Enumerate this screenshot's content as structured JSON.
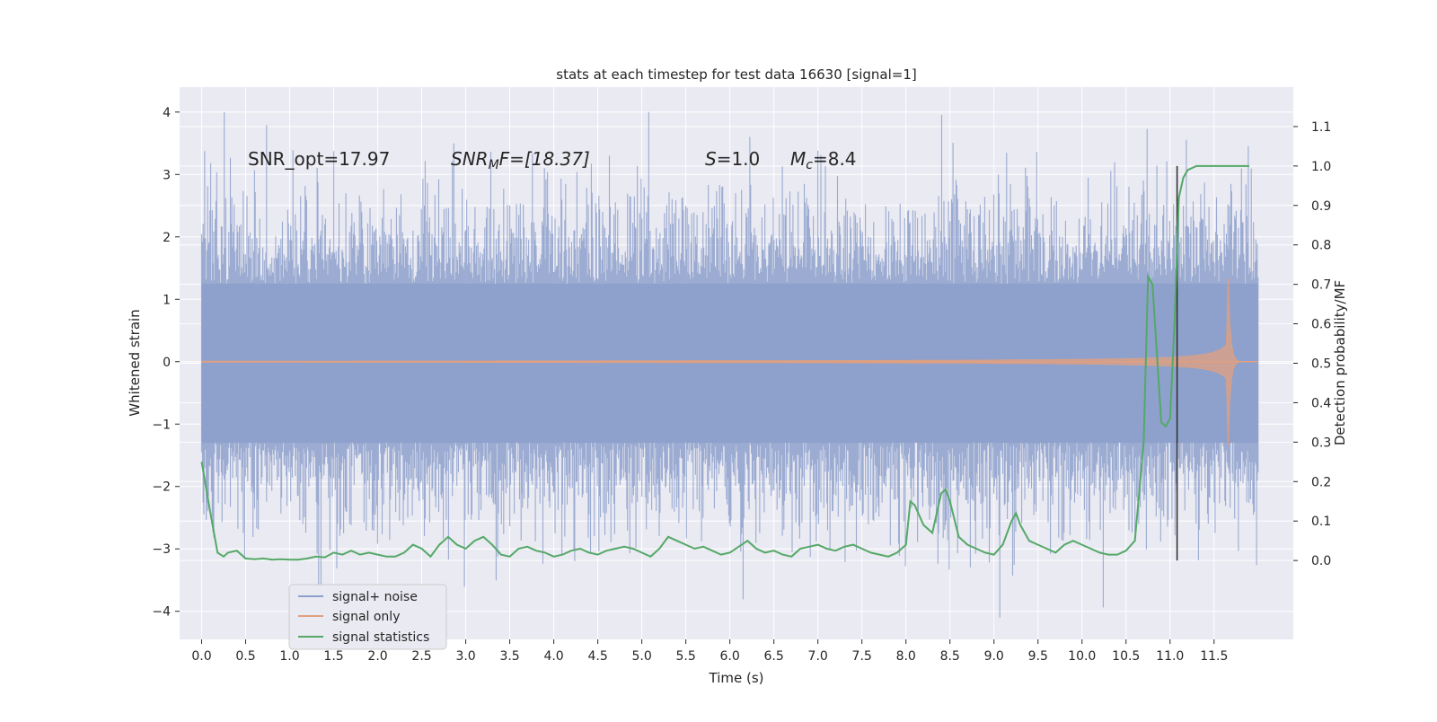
{
  "chart_data": {
    "type": "line",
    "title": "stats at each timestep for test data 16630 [signal=1]",
    "xlabel": "Time (s)",
    "ylabel": "Whitened strain",
    "ylabel_right": "Detection probability/MF",
    "xlim": [
      -0.25,
      12.4
    ],
    "ylim": [
      -4.45,
      4.4
    ],
    "ylim_right": [
      -0.2,
      1.2
    ],
    "x_ticks": [
      "0.0",
      "0.5",
      "1.0",
      "1.5",
      "2.0",
      "2.5",
      "3.0",
      "3.5",
      "4.0",
      "4.5",
      "5.0",
      "5.5",
      "6.0",
      "6.5",
      "7.0",
      "7.5",
      "8.0",
      "8.5",
      "9.0",
      "9.5",
      "10.0",
      "10.5",
      "11.0",
      "11.5"
    ],
    "y_ticks": [
      "4",
      "3",
      "2",
      "1",
      "0",
      "−1",
      "−2",
      "−3",
      "−4"
    ],
    "y_ticks_right": [
      "1.1",
      "1.0",
      "0.9",
      "0.8",
      "0.7",
      "0.6",
      "0.5",
      "0.4",
      "0.3",
      "0.2",
      "0.1",
      "0.0"
    ],
    "annotations": {
      "snr_opt": "SNR_opt=17.97",
      "snr_mf_main": "SNR",
      "snr_mf_sub": "M",
      "snr_mf_rest": "F=[18.37]",
      "s_main": "S",
      "s_rest": "=1.0",
      "mc_main": "M",
      "mc_sub": "c",
      "mc_rest": "=8.4"
    },
    "vline_x": 11.08,
    "grid": true,
    "legend_position": "lower-left",
    "colors": {
      "noise": "#8da0cb",
      "signal": "#e0a080",
      "stats": "#55a868",
      "vline": "#333333",
      "plot_bg": "#eaeaf2",
      "grid": "#ffffff"
    },
    "series": [
      {
        "name": "signal+ noise",
        "description_values": {
          "x_range": [
            0,
            12.0
          ],
          "approx_amplitude": 2.2,
          "peak_max": 4.0,
          "peak_min": -4.1
        }
      },
      {
        "name": "signal only",
        "description_values": {
          "x_range": [
            0,
            12.0
          ],
          "chirp_peak_time": 11.65,
          "peak_amplitude": 2.0
        }
      },
      {
        "name": "signal statistics",
        "x": [
          0.0,
          0.1,
          0.18,
          0.25,
          0.3,
          0.4,
          0.5,
          0.6,
          0.7,
          0.8,
          0.9,
          1.0,
          1.1,
          1.2,
          1.3,
          1.4,
          1.5,
          1.6,
          1.7,
          1.8,
          1.9,
          2.0,
          2.1,
          2.2,
          2.3,
          2.4,
          2.5,
          2.6,
          2.7,
          2.8,
          2.9,
          3.0,
          3.1,
          3.2,
          3.3,
          3.4,
          3.5,
          3.6,
          3.7,
          3.8,
          3.9,
          4.0,
          4.1,
          4.2,
          4.3,
          4.4,
          4.5,
          4.6,
          4.7,
          4.8,
          4.9,
          5.0,
          5.1,
          5.2,
          5.3,
          5.4,
          5.5,
          5.6,
          5.7,
          5.8,
          5.9,
          6.0,
          6.1,
          6.2,
          6.3,
          6.4,
          6.5,
          6.6,
          6.7,
          6.8,
          6.9,
          7.0,
          7.1,
          7.2,
          7.3,
          7.4,
          7.5,
          7.6,
          7.7,
          7.8,
          7.9,
          8.0,
          8.05,
          8.1,
          8.2,
          8.3,
          8.4,
          8.45,
          8.5,
          8.6,
          8.7,
          8.8,
          8.9,
          9.0,
          9.1,
          9.2,
          9.25,
          9.3,
          9.4,
          9.5,
          9.6,
          9.7,
          9.8,
          9.9,
          10.0,
          10.1,
          10.2,
          10.3,
          10.4,
          10.5,
          10.6,
          10.7,
          10.75,
          10.8,
          10.9,
          10.95,
          11.0,
          11.05,
          11.1,
          11.15,
          11.2,
          11.3,
          11.4,
          11.5,
          11.6,
          11.7,
          11.8,
          11.9
        ],
        "values": [
          0.25,
          0.12,
          0.02,
          0.01,
          0.02,
          0.025,
          0.005,
          0.003,
          0.005,
          0.002,
          0.003,
          0.002,
          0.002,
          0.005,
          0.01,
          0.008,
          0.02,
          0.015,
          0.025,
          0.015,
          0.02,
          0.015,
          0.01,
          0.01,
          0.02,
          0.04,
          0.03,
          0.01,
          0.04,
          0.06,
          0.04,
          0.03,
          0.05,
          0.06,
          0.04,
          0.015,
          0.01,
          0.03,
          0.035,
          0.025,
          0.02,
          0.01,
          0.015,
          0.025,
          0.03,
          0.02,
          0.015,
          0.025,
          0.03,
          0.035,
          0.03,
          0.02,
          0.01,
          0.03,
          0.06,
          0.05,
          0.04,
          0.03,
          0.035,
          0.025,
          0.015,
          0.02,
          0.035,
          0.05,
          0.03,
          0.02,
          0.025,
          0.015,
          0.01,
          0.03,
          0.035,
          0.04,
          0.03,
          0.025,
          0.035,
          0.04,
          0.03,
          0.02,
          0.015,
          0.01,
          0.02,
          0.04,
          0.15,
          0.14,
          0.09,
          0.07,
          0.17,
          0.18,
          0.15,
          0.06,
          0.04,
          0.03,
          0.02,
          0.015,
          0.04,
          0.1,
          0.12,
          0.09,
          0.05,
          0.04,
          0.03,
          0.02,
          0.04,
          0.05,
          0.04,
          0.03,
          0.02,
          0.015,
          0.015,
          0.025,
          0.05,
          0.3,
          0.72,
          0.7,
          0.35,
          0.34,
          0.36,
          0.6,
          0.92,
          0.97,
          0.99,
          1.0,
          1.0,
          1.0,
          1.0,
          1.0,
          1.0,
          1.0
        ]
      }
    ]
  },
  "legend": {
    "items": [
      {
        "label": "signal+ noise"
      },
      {
        "label": "signal only"
      },
      {
        "label": "signal statistics"
      }
    ]
  }
}
